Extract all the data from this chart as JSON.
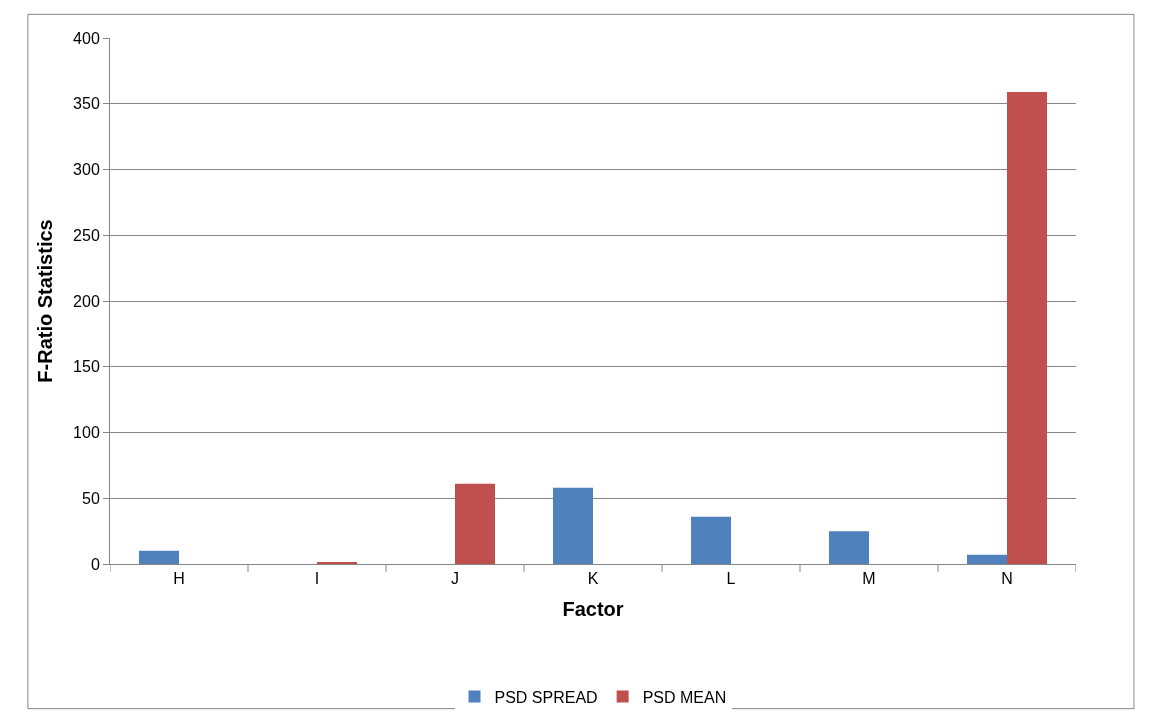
{
  "chart_data": {
    "type": "bar",
    "xlabel": "Factor",
    "ylabel": "F-Ratio Statistics",
    "categories": [
      "H",
      "I",
      "J",
      "K",
      "L",
      "M",
      "N"
    ],
    "series": [
      {
        "name": "PSD SPREAD",
        "color": "#4f81bd",
        "values": [
          10,
          0,
          0,
          58,
          36,
          25,
          7
        ]
      },
      {
        "name": "PSD MEAN",
        "color": "#c0504d",
        "values": [
          0,
          1,
          61,
          0,
          0,
          0,
          359
        ]
      }
    ],
    "ylim": [
      0,
      400
    ],
    "yticks": [
      0,
      50,
      100,
      150,
      200,
      250,
      300,
      350,
      400
    ],
    "grid": "y",
    "legend": "bottom"
  }
}
